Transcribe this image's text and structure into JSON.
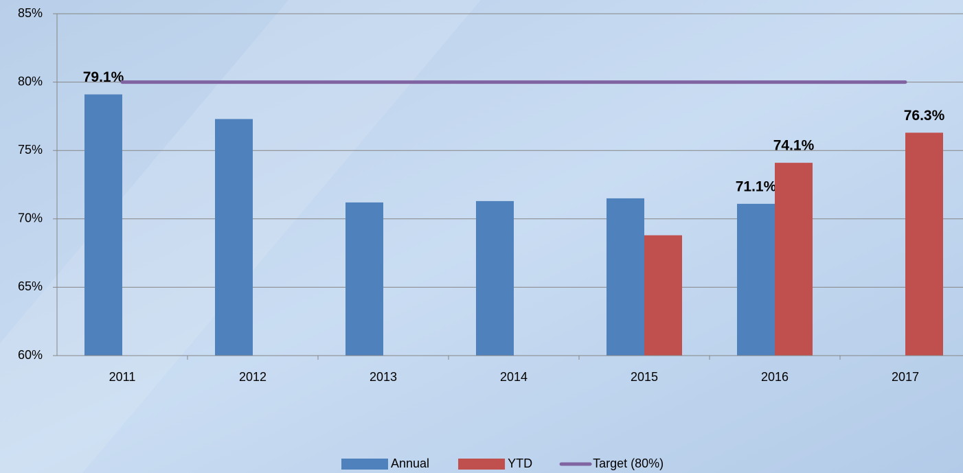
{
  "chart_data": {
    "type": "bar",
    "categories": [
      "2011",
      "2012",
      "2013",
      "2014",
      "2015",
      "2016",
      "2017"
    ],
    "series": [
      {
        "name": "Annual",
        "type": "bar",
        "color": "#4f81bd",
        "values": [
          79.1,
          77.3,
          71.2,
          71.3,
          71.5,
          71.1,
          null
        ],
        "value_labels": [
          "79.1%",
          null,
          null,
          null,
          null,
          "71.1%",
          null
        ]
      },
      {
        "name": "YTD",
        "type": "bar",
        "color": "#c0504d",
        "values": [
          null,
          null,
          null,
          null,
          68.8,
          74.1,
          76.3
        ],
        "value_labels": [
          null,
          null,
          null,
          null,
          null,
          "74.1%",
          "76.3%"
        ]
      },
      {
        "name": "Target (80%)",
        "type": "line",
        "color": "#8064a2",
        "values": [
          80,
          80,
          80,
          80,
          80,
          80,
          80
        ]
      }
    ],
    "ylim": [
      60,
      85
    ],
    "yticks": [
      {
        "value": 60,
        "label": "60%"
      },
      {
        "value": 65,
        "label": "65%"
      },
      {
        "value": 70,
        "label": "70%"
      },
      {
        "value": 75,
        "label": "75%"
      },
      {
        "value": 80,
        "label": "80%"
      },
      {
        "value": 85,
        "label": "85%"
      }
    ],
    "grid": true,
    "legend": "bottom"
  }
}
